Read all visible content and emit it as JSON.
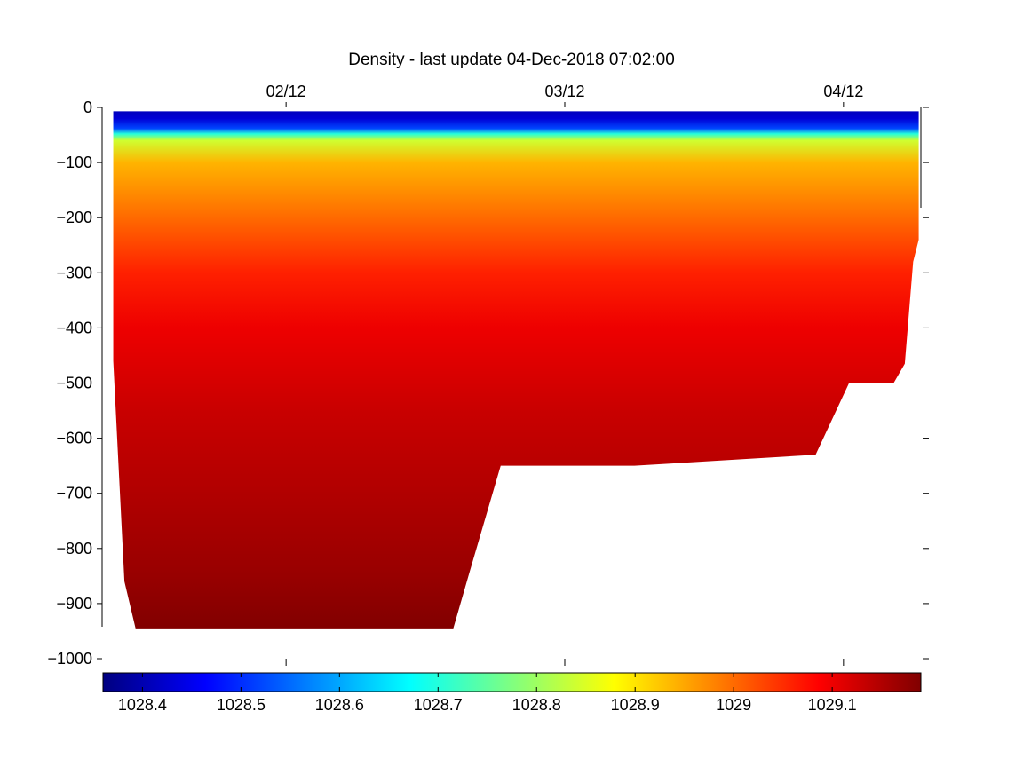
{
  "chart_data": {
    "type": "heatmap",
    "title": "Density - last update 04-Dec-2018 07:02:00",
    "xlabel": "",
    "ylabel": "",
    "x_tick_labels": [
      "02/12",
      "03/12",
      "04/12"
    ],
    "x_ticks": [
      2,
      3,
      4
    ],
    "xlim": [
      1.34,
      4.3
    ],
    "ylim": [
      -1000,
      0
    ],
    "y_ticks": [
      0,
      -100,
      -200,
      -300,
      -400,
      -500,
      -600,
      -700,
      -800,
      -900,
      -1000
    ],
    "y_tick_labels": [
      "0",
      "−100",
      "−200",
      "−300",
      "−400",
      "−500",
      "−600",
      "−700",
      "−800",
      "−900",
      "−1000"
    ],
    "colorbar": {
      "range": [
        1028.36,
        1029.19
      ],
      "tick_values": [
        1028.4,
        1028.5,
        1028.6,
        1028.7,
        1028.8,
        1028.9,
        1029,
        1029.1
      ],
      "tick_labels": [
        "1028.4",
        "1028.5",
        "1028.6",
        "1028.7",
        "1028.8",
        "1028.9",
        "1029",
        "1029.1"
      ],
      "colormap": "jet"
    },
    "data_extent": {
      "x_start": 1.38,
      "x_end": 4.27,
      "bottom_depth_profile": [
        {
          "x": 1.38,
          "depth": -460
        },
        {
          "x": 1.42,
          "depth": -860
        },
        {
          "x": 1.46,
          "depth": -945
        },
        {
          "x": 2.6,
          "depth": -945
        },
        {
          "x": 2.66,
          "depth": -840
        },
        {
          "x": 2.77,
          "depth": -650
        },
        {
          "x": 3.25,
          "depth": -650
        },
        {
          "x": 3.9,
          "depth": -630
        },
        {
          "x": 4.02,
          "depth": -500
        },
        {
          "x": 4.18,
          "depth": -500
        },
        {
          "x": 4.22,
          "depth": -465
        },
        {
          "x": 4.25,
          "depth": -280
        }
      ]
    },
    "density_profile": [
      {
        "depth": 0,
        "value": 1028.4
      },
      {
        "depth": -20,
        "value": 1028.43
      },
      {
        "depth": -38,
        "value": 1028.52
      },
      {
        "depth": -48,
        "value": 1028.7
      },
      {
        "depth": -60,
        "value": 1028.84
      },
      {
        "depth": -100,
        "value": 1028.94
      },
      {
        "depth": -200,
        "value": 1029.0
      },
      {
        "depth": -300,
        "value": 1029.06
      },
      {
        "depth": -400,
        "value": 1029.1
      },
      {
        "depth": -550,
        "value": 1029.13
      },
      {
        "depth": -700,
        "value": 1029.15
      },
      {
        "depth": -850,
        "value": 1029.17
      },
      {
        "depth": -950,
        "value": 1029.19
      }
    ]
  }
}
